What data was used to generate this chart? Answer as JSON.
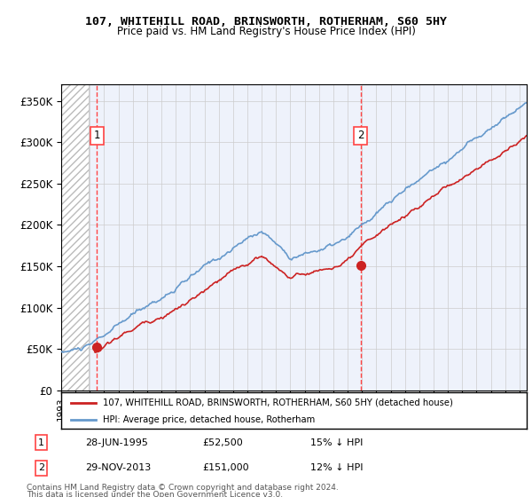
{
  "title": "107, WHITEHILL ROAD, BRINSWORTH, ROTHERHAM, S60 5HY",
  "subtitle": "Price paid vs. HM Land Registry's House Price Index (HPI)",
  "sale1_date": 1995.49,
  "sale1_price": 52500,
  "sale1_label": "1",
  "sale2_date": 2013.91,
  "sale2_price": 151000,
  "sale2_label": "2",
  "legend_line1": "107, WHITEHILL ROAD, BRINSWORTH, ROTHERHAM, S60 5HY (detached house)",
  "legend_line2": "HPI: Average price, detached house, Rotherham",
  "table_row1": [
    "1",
    "28-JUN-1995",
    "£52,500",
    "15% ↓ HPI"
  ],
  "table_row2": [
    "2",
    "29-NOV-2013",
    "£151,000",
    "12% ↓ HPI"
  ],
  "footer1": "Contains HM Land Registry data © Crown copyright and database right 2024.",
  "footer2": "This data is licensed under the Open Government Licence v3.0.",
  "hpi_color": "#6699cc",
  "price_color": "#cc2222",
  "vline_color": "#ff4444",
  "xmin": 1993,
  "xmax": 2025.5,
  "ymin": 0,
  "ymax": 370000
}
